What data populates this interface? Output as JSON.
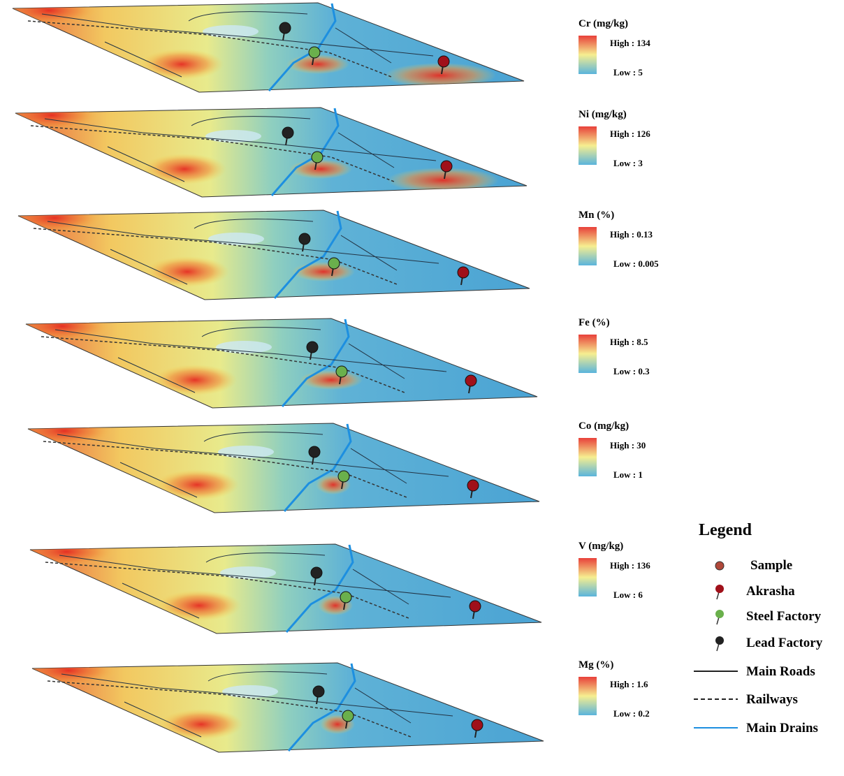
{
  "layers": [
    {
      "title": "Cr (mg/kg)",
      "high": "High : 134",
      "low": "Low : 5"
    },
    {
      "title": "Ni (mg/kg)",
      "high": "High : 126",
      "low": "Low : 3"
    },
    {
      "title": "Mn (%)",
      "high": "High : 0.13",
      "low": "Low : 0.005"
    },
    {
      "title": "Fe (%)",
      "high": "High : 8.5",
      "low": "Low : 0.3"
    },
    {
      "title": "Co (mg/kg)",
      "high": "High : 30",
      "low": "Low : 1"
    },
    {
      "title": "V (mg/kg)",
      "high": "High : 136",
      "low": "Low : 6"
    },
    {
      "title": "Mg (%)",
      "high": "High : 1.6",
      "low": "Low : 0.2"
    }
  ],
  "legend": {
    "title": "Legend",
    "items": [
      "Sample",
      "Akrasha",
      "Steel Factory",
      "Lead Factory",
      "Main Roads",
      "Railways",
      "Main Drains"
    ]
  }
}
